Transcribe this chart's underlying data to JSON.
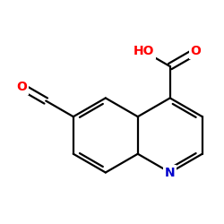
{
  "bg_color": "#ffffff",
  "bond_color": "#000000",
  "atom_colors": {
    "O": "#ff0000",
    "N": "#0000cc",
    "C": "#000000"
  },
  "bond_width": 1.6,
  "figsize": [
    2.5,
    2.5
  ],
  "dpi": 100
}
